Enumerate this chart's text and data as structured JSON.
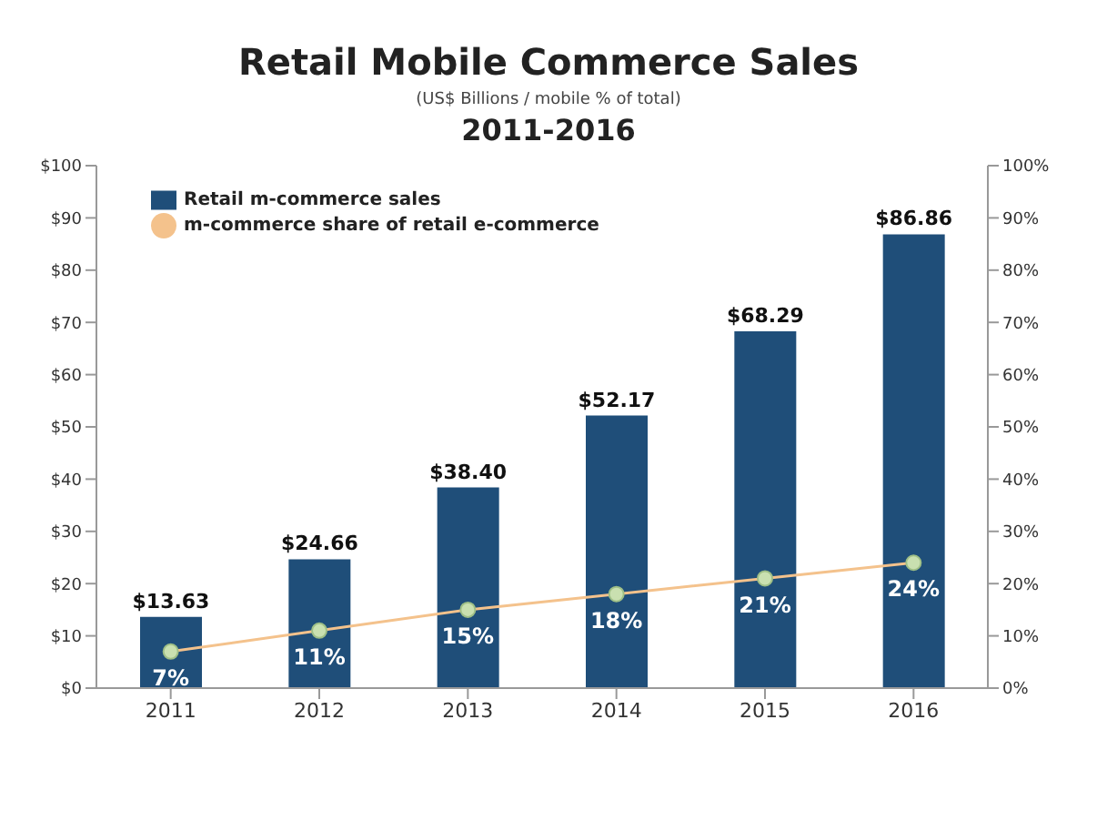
{
  "chart_data": {
    "type": "bar",
    "title": "Retail Mobile Commerce Sales",
    "subtitle": "(US$ Billions / mobile % of total)",
    "annotations": [
      "2011-2016"
    ],
    "categories": [
      "2011",
      "2012",
      "2013",
      "2014",
      "2015",
      "2016"
    ],
    "series": [
      {
        "name": "Retail m-commerce sales",
        "color": "#1f4e79",
        "values": [
          13.63,
          24.66,
          38.4,
          52.17,
          68.29,
          86.86
        ],
        "value_labels": [
          "$13.63",
          "$24.66",
          "$38.40",
          "$52.17",
          "$68.29",
          "$86.86"
        ]
      },
      {
        "name": "m-commerce share of retail e-commerce",
        "type": "line",
        "axis": "y2",
        "color": "#f4c28c",
        "values": [
          7,
          11,
          15,
          18,
          21,
          24
        ],
        "value_labels": [
          "7%",
          "11%",
          "15%",
          "18%",
          "21%",
          "24%"
        ]
      }
    ],
    "ylim": [
      0,
      100
    ],
    "yticks": [
      {
        "value": 0,
        "label": "$0"
      },
      {
        "value": 10,
        "label": "$10"
      },
      {
        "value": 20,
        "label": "$20"
      },
      {
        "value": 30,
        "label": "$30"
      },
      {
        "value": 40,
        "label": "$40"
      },
      {
        "value": 50,
        "label": "$50"
      },
      {
        "value": 60,
        "label": "$60"
      },
      {
        "value": 70,
        "label": "$70"
      },
      {
        "value": 80,
        "label": "$80"
      },
      {
        "value": 90,
        "label": "$90"
      },
      {
        "value": 100,
        "label": "$100"
      }
    ],
    "y2lim": [
      0,
      100
    ],
    "y2ticks": [
      {
        "value": 0,
        "label": "0%"
      },
      {
        "value": 10,
        "label": "10%"
      },
      {
        "value": 20,
        "label": "20%"
      },
      {
        "value": 30,
        "label": "30%"
      },
      {
        "value": 40,
        "label": "40%"
      },
      {
        "value": 50,
        "label": "50%"
      },
      {
        "value": 60,
        "label": "60%"
      },
      {
        "value": 70,
        "label": "70%"
      },
      {
        "value": 80,
        "label": "80%"
      },
      {
        "value": 90,
        "label": "90%"
      },
      {
        "value": 100,
        "label": "100%"
      }
    ],
    "grid": false,
    "legend": "top left",
    "marker": "circle"
  }
}
